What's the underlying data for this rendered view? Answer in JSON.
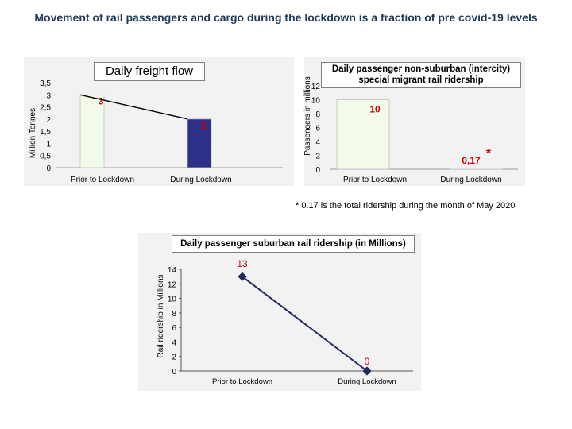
{
  "page": {
    "title": "Movement of rail passengers and cargo during the lockdown is a fraction of pre covid-19 levels"
  },
  "note": "* 0.17 is the total ridership during the month of May 2020",
  "colors": {
    "bar_fill": "#f2fbe9",
    "bar_highlight": "#2e2f86",
    "value_red": "#cc0000",
    "line": "#1f2a5e",
    "panel_bg": "#f2f2f2"
  },
  "chart_data": [
    {
      "type": "bar",
      "title": "Daily freight flow",
      "ylabel": "Million Tonnes",
      "xlabel": "",
      "categories": [
        "Prior to Lockdown",
        "During Lockdown"
      ],
      "values": [
        3,
        2
      ],
      "value_labels": [
        "3",
        "2"
      ],
      "ylim": [
        0,
        3.5
      ],
      "yticks": [
        "0",
        "0,5",
        "1",
        "1,5",
        "2",
        "2,5",
        "3",
        "3,5"
      ],
      "connector_line": true
    },
    {
      "type": "bar",
      "title": "Daily passenger non-suburban (intercity) special migrant rail ridership",
      "ylabel": "Passengers in millions",
      "xlabel": "",
      "categories": [
        "Prior to Lockdown",
        "During Lockdown"
      ],
      "values": [
        10,
        0.17
      ],
      "value_labels": [
        "10",
        "0,17"
      ],
      "marker": "*",
      "ylim": [
        0,
        12
      ],
      "yticks": [
        "0",
        "2",
        "4",
        "6",
        "8",
        "10",
        "12"
      ]
    },
    {
      "type": "line",
      "title": "Daily passenger suburban rail ridership  (in Millions)",
      "ylabel": "Rail ridership  in Millions",
      "xlabel": "",
      "categories": [
        "Prior to Lockdown",
        "During Lockdown"
      ],
      "values": [
        13,
        0
      ],
      "value_labels": [
        "13",
        "0"
      ],
      "ylim": [
        0,
        14
      ],
      "yticks": [
        "0",
        "2",
        "4",
        "6",
        "8",
        "10",
        "12",
        "14"
      ]
    }
  ]
}
